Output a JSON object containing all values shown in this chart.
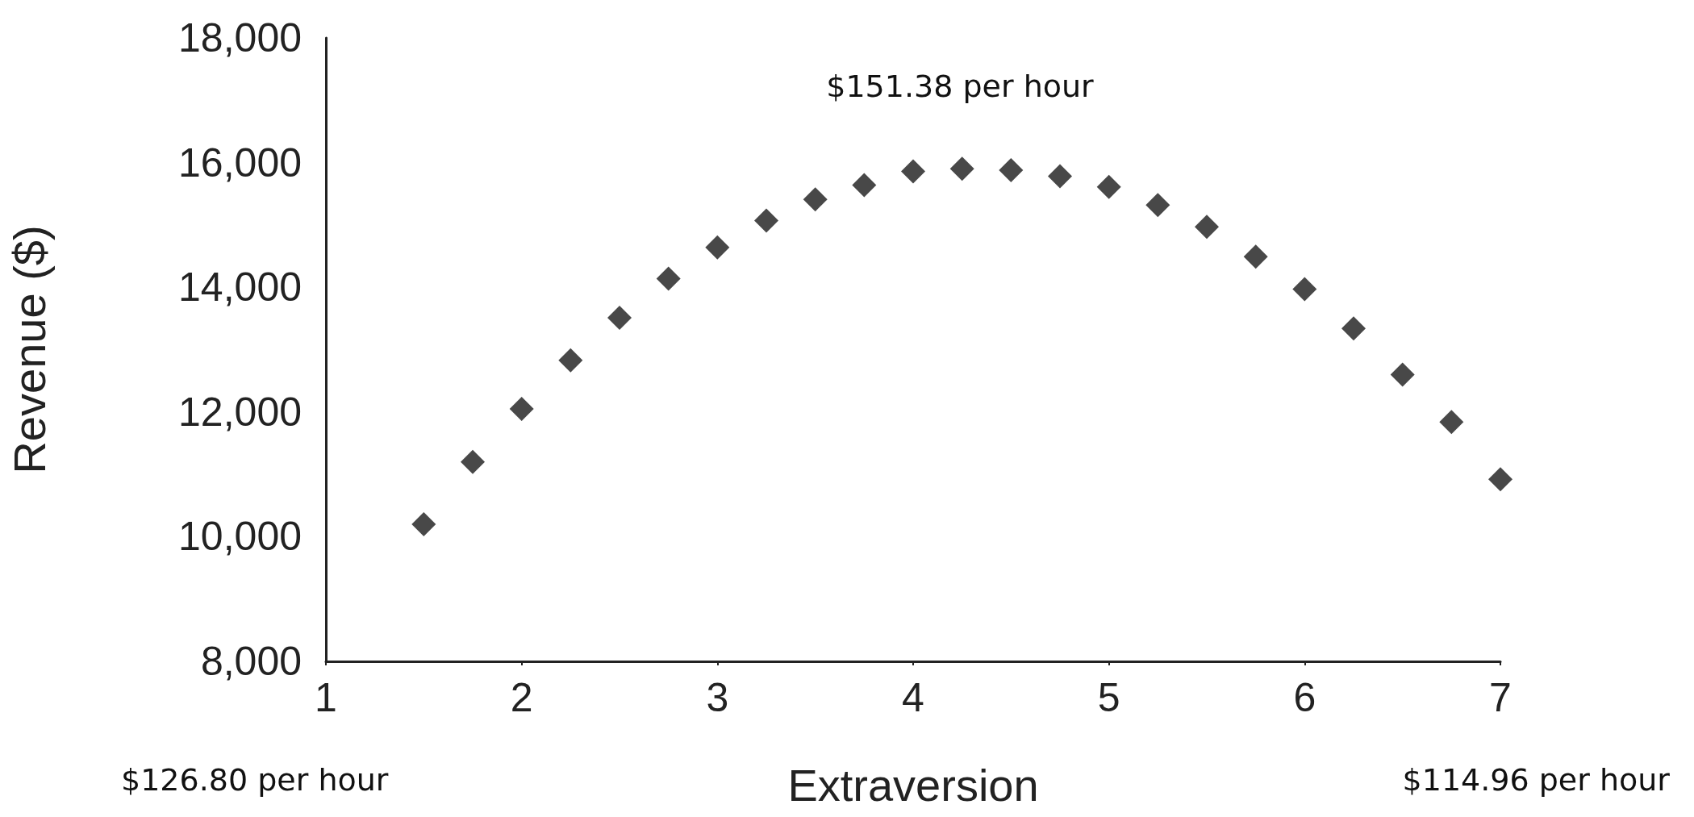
{
  "chart_data": {
    "type": "scatter",
    "xlabel": "Extraversion",
    "ylabel": "Revenue ($)",
    "annotations": [
      "$151.38 per hour",
      "$126.80 per hour",
      "$114.96 per hour"
    ],
    "x": [
      1.5,
      1.75,
      2,
      2.25,
      2.5,
      2.75,
      3,
      3.25,
      3.5,
      3.75,
      4,
      4.25,
      4.5,
      4.75,
      5,
      5.25,
      5.5,
      5.75,
      6,
      6.25,
      6.5,
      6.75,
      7
    ],
    "values": [
      10200,
      11200,
      12050,
      12830,
      13510,
      14140,
      14640,
      15070,
      15410,
      15640,
      15860,
      15900,
      15880,
      15780,
      15610,
      15320,
      14970,
      14490,
      13970,
      13340,
      12600,
      11840,
      10920
    ],
    "color": "#1a1a1a",
    "marker": "diamond",
    "grid": false,
    "xlim": [
      1,
      7
    ],
    "xticks": [
      1,
      2,
      3,
      4,
      5,
      6,
      7
    ],
    "ylim": [
      8000,
      18000
    ],
    "yticks": [
      {
        "value": 8000,
        "label": "8,000"
      },
      {
        "value": 10000,
        "label": "10,000"
      },
      {
        "value": 12000,
        "label": "12,000"
      },
      {
        "value": 14000,
        "label": "14,000"
      },
      {
        "value": 16000,
        "label": "16,000"
      },
      {
        "value": 18000,
        "label": "18,000"
      }
    ]
  }
}
